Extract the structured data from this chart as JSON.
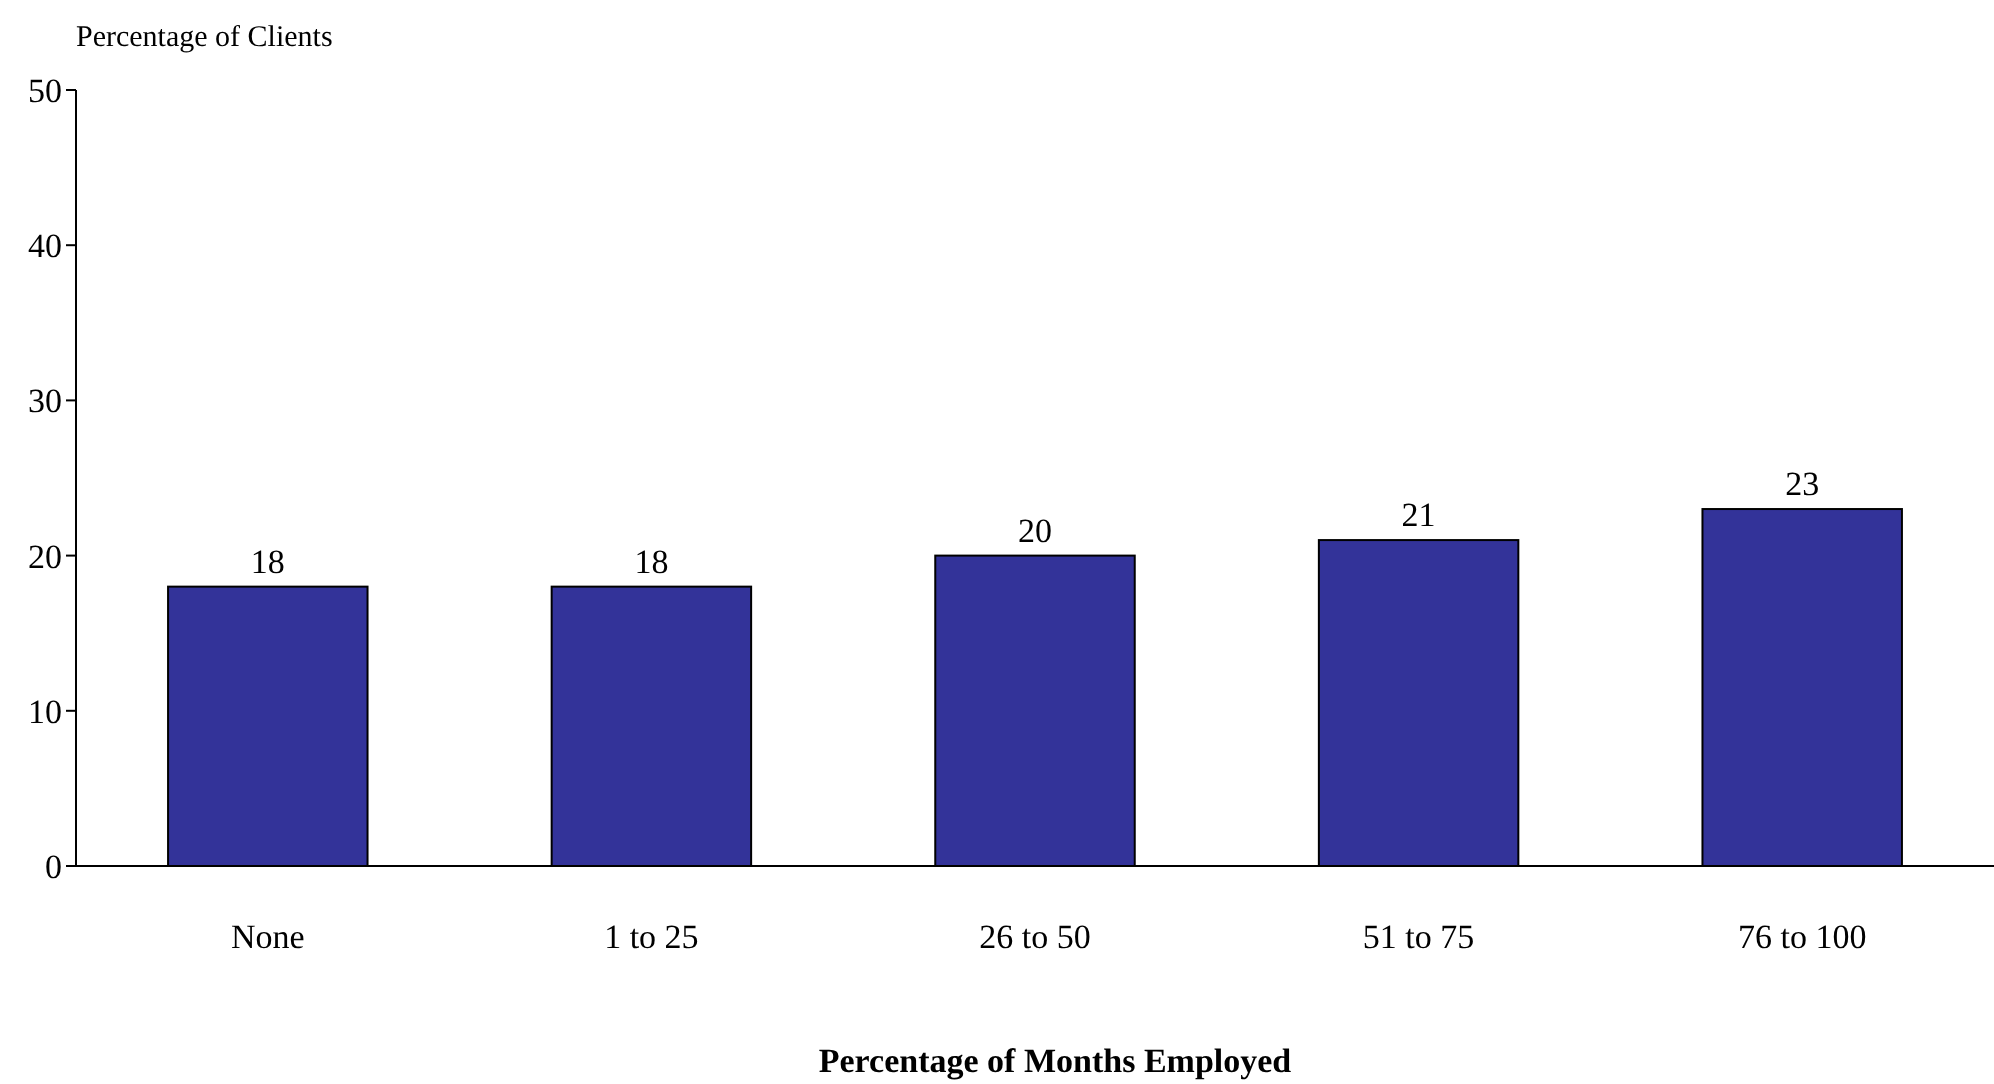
{
  "chart_data": {
    "type": "bar",
    "xlabel": "Percentage of Months Employed",
    "ylabel": "Percentage of Clients",
    "categories": [
      "None",
      "1 to 25",
      "26 to 50",
      "51 to 75",
      "76 to 100"
    ],
    "values": [
      18,
      18,
      20,
      21,
      23
    ],
    "color": "#333399",
    "ylim": [
      0,
      50
    ],
    "yticks": [
      0,
      10,
      20,
      30,
      40,
      50
    ],
    "grid": false,
    "data_labels": true
  }
}
